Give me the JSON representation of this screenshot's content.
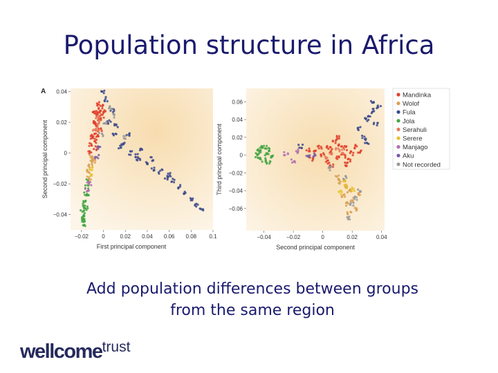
{
  "slide": {
    "title": "Population structure in Africa",
    "caption_line1": "Add population differences between groups",
    "caption_line2": "from the same region",
    "logo_bold": "wellcome",
    "logo_light": "trust"
  },
  "chart_data": [
    {
      "type": "scatter",
      "panel_label": "A",
      "xlabel": "First principal component",
      "ylabel": "Second principal component",
      "xlim": [
        -0.03,
        0.1
      ],
      "ylim": [
        -0.05,
        0.042
      ],
      "xticks": [
        -0.02,
        0,
        0.02,
        0.04,
        0.06,
        0.08,
        0.1
      ],
      "xtick_labels": [
        "−0.02",
        "0",
        "0.02",
        "0.04",
        "0.06",
        "0.08",
        "0.1"
      ],
      "yticks": [
        0.04,
        0.02,
        0,
        -0.02,
        -0.04
      ],
      "ytick_labels": [
        "0.04",
        "0.02",
        "0",
        "−0.02",
        "−0.04"
      ],
      "series": [
        {
          "name": "Mandinka",
          "points": [
            [
              -0.01,
              0.01
            ],
            [
              -0.008,
              0.02
            ],
            [
              -0.005,
              0.025
            ],
            [
              -0.003,
              0.028
            ],
            [
              -0.006,
              0.018
            ],
            [
              -0.009,
              0.012
            ],
            [
              -0.004,
              0.022
            ],
            [
              -0.002,
              0.03
            ],
            [
              -0.007,
              0.008
            ],
            [
              -0.011,
              0.005
            ],
            [
              -0.003,
              0.015
            ],
            [
              -0.001,
              0.024
            ],
            [
              -0.008,
              0.027
            ],
            [
              -0.005,
              0.012
            ],
            [
              -0.012,
              0.0
            ],
            [
              -0.004,
              0.032
            ],
            [
              -0.006,
              0.026
            ],
            [
              -0.009,
              0.019
            ],
            [
              0.0,
              0.027
            ],
            [
              -0.007,
              0.003
            ]
          ]
        },
        {
          "name": "Wolof",
          "points": [
            [
              -0.012,
              -0.008
            ],
            [
              -0.014,
              -0.012
            ],
            [
              -0.01,
              -0.004
            ],
            [
              -0.013,
              -0.016
            ],
            [
              -0.011,
              -0.002
            ],
            [
              -0.009,
              -0.006
            ]
          ]
        },
        {
          "name": "Fula",
          "points": [
            [
              0.005,
              0.02
            ],
            [
              0.01,
              0.012
            ],
            [
              0.018,
              0.006
            ],
            [
              0.025,
              0.0
            ],
            [
              0.032,
              -0.004
            ],
            [
              0.04,
              -0.006
            ],
            [
              0.046,
              -0.01
            ],
            [
              0.052,
              -0.012
            ],
            [
              0.058,
              -0.016
            ],
            [
              0.064,
              -0.018
            ],
            [
              0.07,
              -0.022
            ],
            [
              0.075,
              -0.026
            ],
            [
              0.08,
              -0.03
            ],
            [
              0.085,
              -0.034
            ],
            [
              0.09,
              -0.036
            ],
            [
              0.012,
              0.018
            ],
            [
              0.022,
              0.012
            ],
            [
              0.035,
              0.002
            ],
            [
              0.045,
              -0.004
            ],
            [
              0.06,
              -0.014
            ],
            [
              0.003,
              0.035
            ],
            [
              0.0,
              0.04
            ],
            [
              0.008,
              0.028
            ],
            [
              0.015,
              0.004
            ],
            [
              0.03,
              -0.002
            ]
          ]
        },
        {
          "name": "Jola",
          "points": [
            [
              -0.018,
              -0.035
            ],
            [
              -0.019,
              -0.038
            ],
            [
              -0.017,
              -0.04
            ],
            [
              -0.018,
              -0.042
            ],
            [
              -0.016,
              -0.036
            ],
            [
              -0.017,
              -0.032
            ],
            [
              -0.015,
              -0.028
            ],
            [
              -0.016,
              -0.026
            ],
            [
              -0.015,
              -0.022
            ],
            [
              -0.014,
              -0.018
            ],
            [
              -0.018,
              -0.044
            ],
            [
              -0.017,
              -0.046
            ]
          ]
        },
        {
          "name": "Serahuli",
          "points": [
            [
              -0.006,
              0.016
            ],
            [
              -0.004,
              0.02
            ],
            [
              -0.008,
              0.014
            ],
            [
              -0.005,
              0.023
            ]
          ]
        },
        {
          "name": "Serere",
          "points": [
            [
              -0.011,
              -0.01
            ],
            [
              -0.012,
              -0.014
            ]
          ]
        },
        {
          "name": "Manjago",
          "points": [
            [
              -0.015,
              -0.024
            ],
            [
              -0.013,
              -0.02
            ]
          ]
        },
        {
          "name": "Aku",
          "points": [
            [
              -0.006,
              -0.002
            ],
            [
              -0.004,
              0.004
            ]
          ]
        },
        {
          "name": "Not recorded",
          "points": [
            [
              0.002,
              0.02
            ],
            [
              0.01,
              0.024
            ],
            [
              -0.002,
              0.012
            ],
            [
              0.02,
              0.01
            ],
            [
              0.006,
              0.03
            ]
          ]
        }
      ]
    },
    {
      "type": "scatter",
      "xlabel": "Second principal component",
      "ylabel": "Third principal component",
      "xlim": [
        -0.052,
        0.042
      ],
      "ylim": [
        -0.085,
        0.075
      ],
      "xticks": [
        -0.04,
        -0.02,
        0,
        0.02,
        0.04
      ],
      "xtick_labels": [
        "−0.04",
        "−0.02",
        "0",
        "0.02",
        "0.04"
      ],
      "yticks": [
        0.06,
        0.04,
        0.02,
        0,
        -0.02,
        -0.04,
        -0.06
      ],
      "ytick_labels": [
        "0.06",
        "0.04",
        "0.02",
        "0",
        "−0.02",
        "−0.04",
        "−0.06"
      ],
      "legend_position": "right",
      "series": [
        {
          "name": "Mandinka",
          "points": [
            [
              0.0,
              0.0
            ],
            [
              0.005,
              0.005
            ],
            [
              0.01,
              -0.003
            ],
            [
              -0.005,
              0.003
            ],
            [
              0.015,
              0.008
            ],
            [
              0.02,
              0.002
            ],
            [
              0.012,
              0.012
            ],
            [
              0.003,
              -0.008
            ],
            [
              -0.008,
              -0.004
            ],
            [
              0.018,
              -0.006
            ],
            [
              0.008,
              0.015
            ],
            [
              0.022,
              0.01
            ],
            [
              0.006,
              -0.012
            ],
            [
              -0.002,
              0.009
            ],
            [
              0.014,
              -0.001
            ],
            [
              0.025,
              0.004
            ],
            [
              -0.01,
              0.006
            ],
            [
              0.01,
              0.02
            ],
            [
              0.016,
              -0.01
            ],
            [
              0.004,
              0.01
            ]
          ]
        },
        {
          "name": "Wolof",
          "points": [
            [
              0.012,
              -0.03
            ],
            [
              0.015,
              -0.035
            ],
            [
              0.018,
              -0.04
            ],
            [
              0.014,
              -0.045
            ],
            [
              0.02,
              -0.05
            ],
            [
              0.016,
              -0.055
            ],
            [
              0.022,
              -0.06
            ],
            [
              0.01,
              -0.025
            ],
            [
              0.018,
              -0.065
            ],
            [
              0.024,
              -0.045
            ]
          ]
        },
        {
          "name": "Fula",
          "points": [
            [
              0.025,
              0.03
            ],
            [
              0.03,
              0.04
            ],
            [
              0.035,
              0.05
            ],
            [
              0.038,
              0.055
            ],
            [
              0.028,
              0.02
            ],
            [
              0.032,
              0.045
            ],
            [
              0.036,
              0.035
            ],
            [
              -0.015,
              0.01
            ],
            [
              0.03,
              0.015
            ],
            [
              0.034,
              0.06
            ]
          ]
        },
        {
          "name": "Jola",
          "points": [
            [
              -0.045,
              0.0
            ],
            [
              -0.042,
              0.004
            ],
            [
              -0.04,
              -0.005
            ],
            [
              -0.038,
              0.002
            ],
            [
              -0.036,
              0.006
            ],
            [
              -0.043,
              -0.003
            ],
            [
              -0.039,
              0.008
            ],
            [
              -0.034,
              -0.002
            ],
            [
              -0.037,
              -0.008
            ],
            [
              -0.041,
              0.01
            ],
            [
              -0.044,
              0.006
            ]
          ]
        },
        {
          "name": "Serahuli",
          "points": [
            [
              0.006,
              0.002
            ],
            [
              0.01,
              0.006
            ],
            [
              0.002,
              -0.002
            ],
            [
              0.014,
              0.004
            ]
          ]
        },
        {
          "name": "Serere",
          "points": [
            [
              0.016,
              -0.035
            ],
            [
              0.012,
              -0.042
            ],
            [
              0.02,
              -0.038
            ],
            [
              0.015,
              -0.028
            ]
          ]
        },
        {
          "name": "Manjago",
          "points": [
            [
              -0.02,
              -0.006
            ],
            [
              -0.025,
              0.002
            ],
            [
              -0.018,
              0.004
            ]
          ]
        },
        {
          "name": "Aku",
          "points": [
            [
              -0.006,
              0.0
            ],
            [
              -0.01,
              -0.002
            ]
          ]
        },
        {
          "name": "Not recorded",
          "points": [
            [
              0.015,
              -0.025
            ],
            [
              0.02,
              -0.055
            ],
            [
              0.025,
              -0.04
            ],
            [
              0.005,
              -0.015
            ],
            [
              0.018,
              -0.07
            ],
            [
              0.022,
              -0.048
            ]
          ]
        }
      ]
    }
  ],
  "legend": [
    {
      "label": "Mandinka",
      "color": "#e0402c"
    },
    {
      "label": "Wolof",
      "color": "#d9a055"
    },
    {
      "label": "Fula",
      "color": "#3c4a8c"
    },
    {
      "label": "Jola",
      "color": "#43a543"
    },
    {
      "label": "Serahuli",
      "color": "#e57a5c"
    },
    {
      "label": "Serere",
      "color": "#e8c22a"
    },
    {
      "label": "Manjago",
      "color": "#b070b0"
    },
    {
      "label": "Aku",
      "color": "#7a5aa6"
    },
    {
      "label": "Not recorded",
      "color": "#9a9a9a"
    }
  ]
}
